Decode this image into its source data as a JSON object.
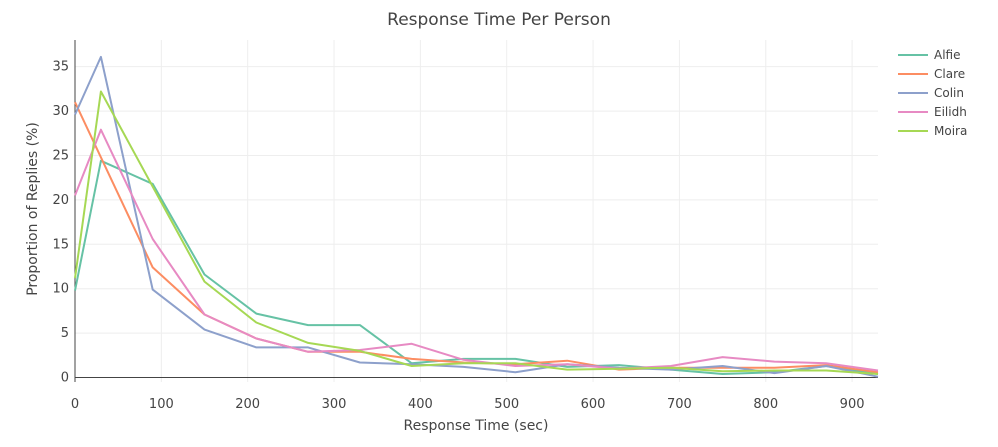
{
  "chart_data": {
    "type": "line",
    "title": "Response Time Per Person",
    "xlabel": "Response Time (sec)",
    "ylabel": "Proportion of Replies (%)",
    "xlim": [
      0,
      930
    ],
    "ylim": [
      -0.5,
      38
    ],
    "xticks": [
      0,
      100,
      200,
      300,
      400,
      500,
      600,
      700,
      800,
      900
    ],
    "yticks": [
      0,
      5,
      10,
      15,
      20,
      25,
      30,
      35
    ],
    "grid": true,
    "legend_position": "top-right",
    "x": [
      0,
      30,
      90,
      150,
      210,
      270,
      330,
      390,
      450,
      510,
      570,
      630,
      690,
      750,
      810,
      870,
      930
    ],
    "series": [
      {
        "name": "Alfie",
        "color": "#66c2a5",
        "values": [
          9.8,
          24.4,
          21.8,
          11.6,
          7.2,
          5.9,
          5.9,
          1.6,
          2.1,
          2.1,
          1.2,
          1.4,
          0.9,
          0.4,
          0.6,
          1.3,
          0.4
        ]
      },
      {
        "name": "Clare",
        "color": "#fc8d62",
        "values": [
          31.0,
          24.8,
          12.4,
          7.1,
          4.4,
          2.9,
          2.9,
          2.1,
          1.7,
          1.5,
          1.9,
          0.9,
          1.1,
          1.1,
          1.1,
          1.4,
          0.6
        ]
      },
      {
        "name": "Colin",
        "color": "#8da0cb",
        "values": [
          29.6,
          36.1,
          9.9,
          5.4,
          3.4,
          3.4,
          1.7,
          1.5,
          1.2,
          0.6,
          1.5,
          1.1,
          0.9,
          1.3,
          0.5,
          1.3,
          0.1
        ]
      },
      {
        "name": "Eilidh",
        "color": "#e78ac3",
        "values": [
          20.5,
          27.9,
          15.6,
          7.1,
          4.4,
          2.9,
          3.1,
          3.8,
          2.0,
          1.3,
          1.5,
          1.0,
          1.3,
          2.3,
          1.8,
          1.6,
          0.8
        ]
      },
      {
        "name": "Moira",
        "color": "#a6d854",
        "values": [
          11.2,
          32.2,
          21.5,
          10.8,
          6.2,
          3.9,
          3.0,
          1.3,
          1.6,
          1.6,
          0.9,
          1.0,
          1.1,
          0.7,
          0.8,
          0.8,
          0.4
        ]
      }
    ]
  }
}
